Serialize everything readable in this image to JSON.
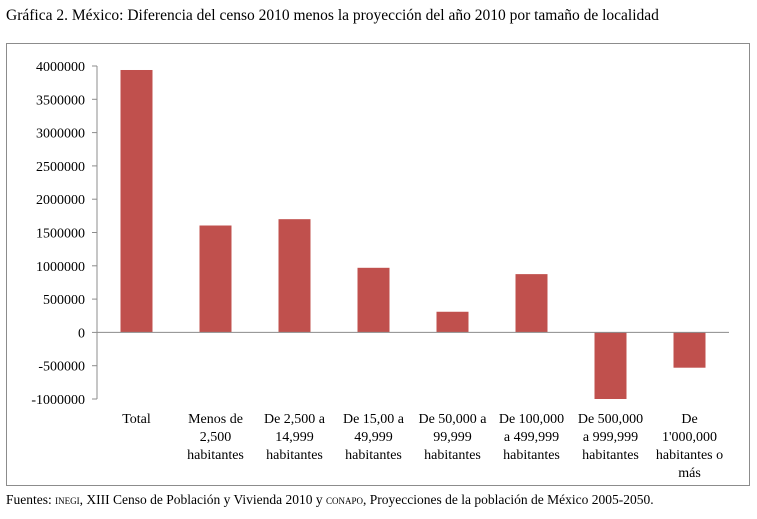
{
  "header": {
    "title": "Gráfica 2. México: Diferencia del censo 2010 menos la proyección del año 2010 por tamaño de localidad"
  },
  "footer": {
    "prefix": "Fuentes: ",
    "inegi": "inegi",
    "mid": ", XIII Censo de  Población y Vivienda 2010 y ",
    "conapo": "conapo",
    "suffix": ", Proyecciones de la población de México 2005-2050."
  },
  "chart_data": {
    "type": "bar",
    "title": "Gráfica 2. México: Diferencia del censo 2010 menos la proyección del año 2010 por tamaño de localidad",
    "xlabel": "",
    "ylabel": "",
    "ylim": [
      -1000000,
      4000000
    ],
    "yticks": [
      4000000,
      3500000,
      3000000,
      2500000,
      2000000,
      1500000,
      1000000,
      500000,
      0,
      -500000,
      -1000000
    ],
    "ytick_labels": [
      "4000000",
      "3500000",
      "3000000",
      "2500000",
      "2000000",
      "1500000",
      "1000000",
      "500000",
      "0",
      "-500000",
      "-1000000"
    ],
    "categories": [
      [
        "Total"
      ],
      [
        "Menos de",
        "2,500",
        "habitantes"
      ],
      [
        "De 2,500 a",
        "14,999",
        "habitantes"
      ],
      [
        "De 15,00 a",
        "49,999",
        "habitantes"
      ],
      [
        "De 50,000 a",
        "99,999",
        "habitantes"
      ],
      [
        "De 100,000",
        "a 499,999",
        "habitantes"
      ],
      [
        "De 500,000",
        "a 999,999",
        "habitantes"
      ],
      [
        "De",
        "1'000,000",
        "habitantes o",
        "más"
      ]
    ],
    "values": [
      3940000,
      1605000,
      1700000,
      970000,
      310000,
      875000,
      -1000000,
      -530000
    ],
    "bar_color": "#c0504d",
    "grid": false,
    "legend": "none"
  }
}
